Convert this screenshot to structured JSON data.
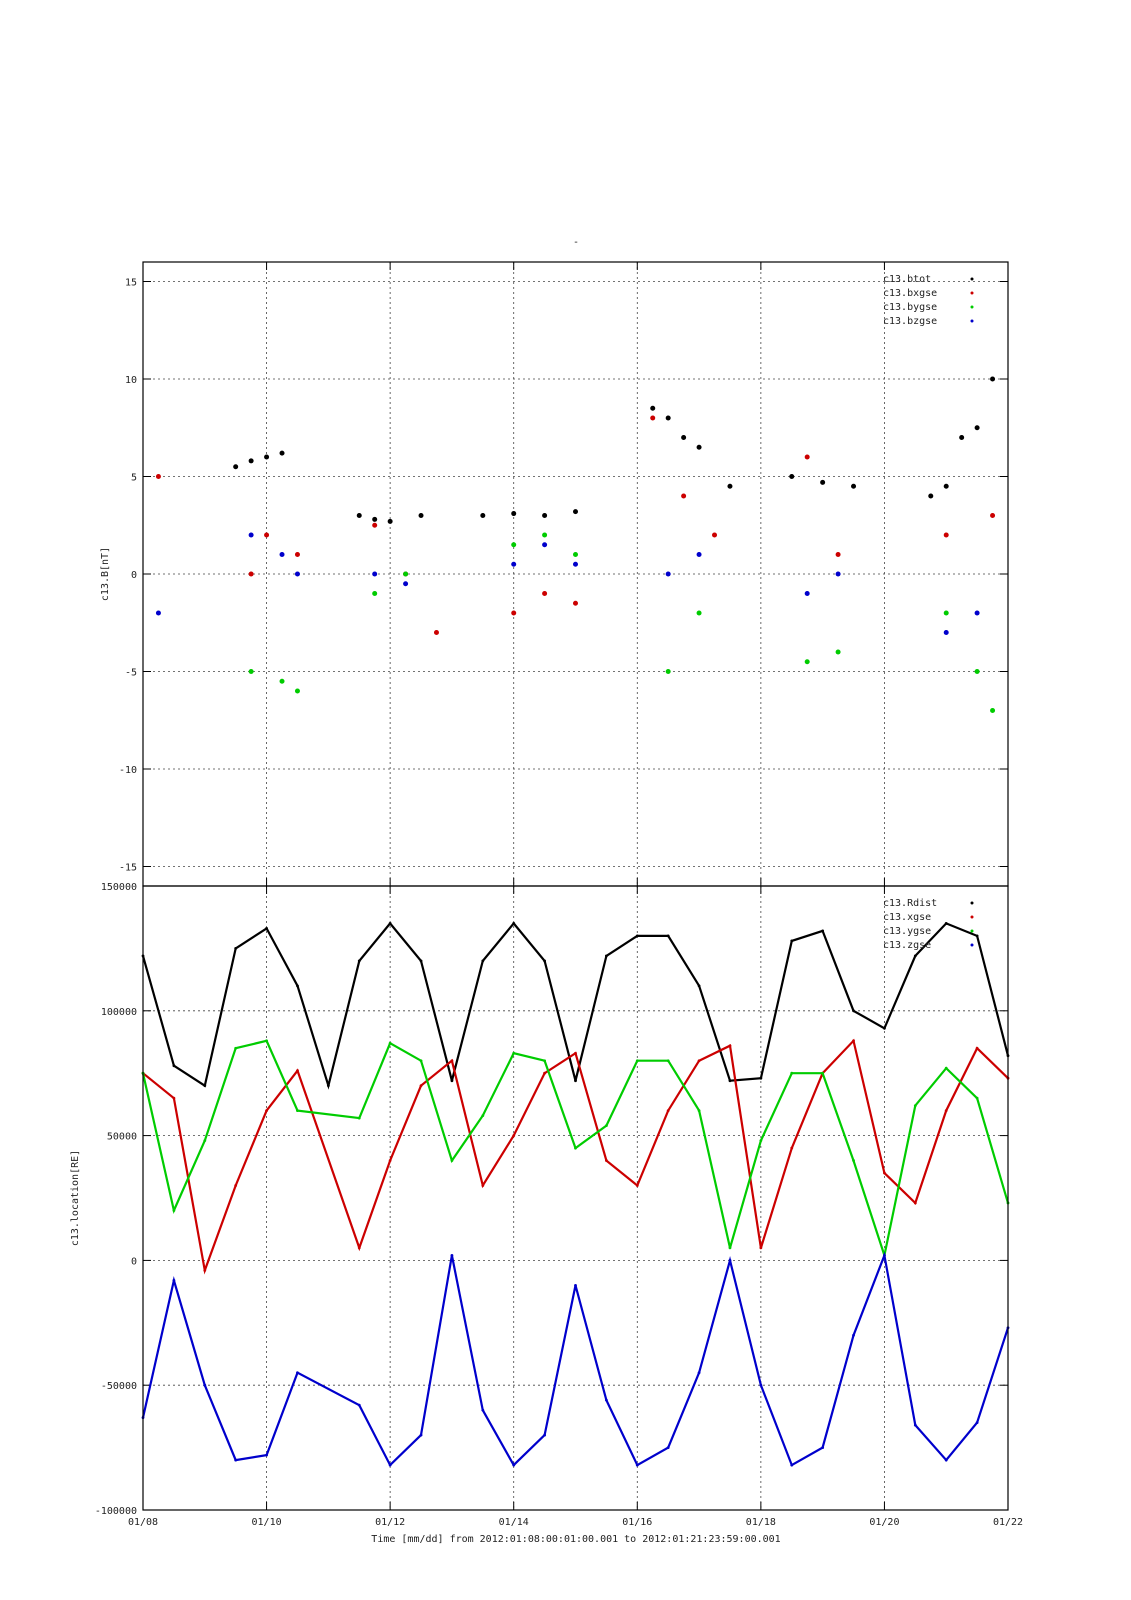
{
  "top_mark": "-",
  "x_axis": {
    "label": "Time [mm/dd]  from 2012:01:08:00:01:00.001  to  2012:01:21:23:59:00.001",
    "range": [
      "2012-01-08",
      "2012-01-22"
    ],
    "ticks": [
      "01/08",
      "01/10",
      "01/12",
      "01/14",
      "01/16",
      "01/18",
      "01/20",
      "01/22"
    ]
  },
  "colors": {
    "Rdist": "#000000",
    "xgse": "#cc0000",
    "ygse": "#00cc00",
    "zgse": "#0000cc"
  },
  "chart_data": [
    {
      "type": "scatter",
      "ylabel": "c13.B[nT]",
      "ylim": [
        -16,
        16
      ],
      "yticks": [
        "15",
        "10",
        "5",
        "0",
        "-5",
        "-10",
        "-15"
      ],
      "grid": true,
      "legend_position": "top-right",
      "series": [
        {
          "name": "c13.btot",
          "color": "#000000",
          "x": [
            "01/09 12:00",
            "01/09 18:00",
            "01/10 00:00",
            "01/10 06:00",
            "01/11 12:00",
            "01/11 18:00",
            "01/12 00:00",
            "01/12 12:00",
            "01/13 12:00",
            "01/14 00:00",
            "01/14 12:00",
            "01/15 00:00",
            "01/16 06:00",
            "01/16 12:00",
            "01/16 18:00",
            "01/17 00:00",
            "01/17 12:00",
            "01/18 12:00",
            "01/19 00:00",
            "01/19 12:00",
            "01/20 18:00",
            "01/21 00:00",
            "01/21 06:00",
            "01/21 12:00",
            "01/21 18:00"
          ],
          "values": [
            5.5,
            5.8,
            6.0,
            6.2,
            3.0,
            2.8,
            2.7,
            3.0,
            3.0,
            3.1,
            3.0,
            3.2,
            8.5,
            8.0,
            7.0,
            6.5,
            4.5,
            5.0,
            4.7,
            4.5,
            4.0,
            4.5,
            7.0,
            7.5,
            10.0
          ]
        },
        {
          "name": "c13.bxgse",
          "color": "#cc0000",
          "x": [
            "01/08 06:00",
            "01/09 18:00",
            "01/10 00:00",
            "01/10 12:00",
            "01/11 18:00",
            "01/12 06:00",
            "01/12 18:00",
            "01/14 00:00",
            "01/14 12:00",
            "01/15 00:00",
            "01/16 06:00",
            "01/16 18:00",
            "01/17 06:00",
            "01/18 18:00",
            "01/19 06:00",
            "01/21 00:00",
            "01/21 18:00"
          ],
          "values": [
            5.0,
            0.0,
            2.0,
            1.0,
            2.5,
            0.0,
            -3.0,
            -2.0,
            -1.0,
            -1.5,
            8.0,
            4.0,
            2.0,
            6.0,
            1.0,
            2.0,
            3.0
          ]
        },
        {
          "name": "c13.bygse",
          "color": "#00cc00",
          "x": [
            "01/09 18:00",
            "01/10 06:00",
            "01/10 12:00",
            "01/11 18:00",
            "01/12 06:00",
            "01/14 00:00",
            "01/14 12:00",
            "01/15 00:00",
            "01/16 12:00",
            "01/17 00:00",
            "01/18 18:00",
            "01/19 06:00",
            "01/21 00:00",
            "01/21 12:00",
            "01/21 18:00"
          ],
          "values": [
            -5.0,
            -5.5,
            -6.0,
            -1.0,
            0.0,
            1.5,
            2.0,
            1.0,
            -5.0,
            -2.0,
            -4.5,
            -4.0,
            -2.0,
            -5.0,
            -7.0
          ]
        },
        {
          "name": "c13.bzgse",
          "color": "#0000cc",
          "x": [
            "01/08 06:00",
            "01/09 18:00",
            "01/10 06:00",
            "01/10 12:00",
            "01/11 18:00",
            "01/12 06:00",
            "01/14 00:00",
            "01/14 12:00",
            "01/15 00:00",
            "01/16 12:00",
            "01/17 00:00",
            "01/18 18:00",
            "01/19 06:00",
            "01/21 00:00",
            "01/21 12:00"
          ],
          "values": [
            -2.0,
            2.0,
            1.0,
            0.0,
            0.0,
            -0.5,
            0.5,
            1.5,
            0.5,
            0.0,
            1.0,
            -1.0,
            0.0,
            -3.0,
            -2.0
          ]
        }
      ]
    },
    {
      "type": "line",
      "ylabel": "c13.location[RE]",
      "ylim": [
        -100000,
        150000
      ],
      "yticks": [
        "150000",
        "100000",
        "50000",
        "0",
        "-50000",
        "-100000"
      ],
      "grid": true,
      "legend_position": "top-right",
      "series": [
        {
          "name": "c13.Rdist",
          "color": "#000000",
          "x": [
            "01/08 00:00",
            "01/08 12:00",
            "01/09 00:00",
            "01/09 12:00",
            "01/10 00:00",
            "01/10 12:00",
            "01/11 00:00",
            "01/11 12:00",
            "01/12 00:00",
            "01/12 12:00",
            "01/13 00:00",
            "01/13 12:00",
            "01/14 00:00",
            "01/14 12:00",
            "01/15 00:00",
            "01/15 12:00",
            "01/16 00:00",
            "01/16 12:00",
            "01/17 00:00",
            "01/17 12:00",
            "01/18 00:00",
            "01/18 12:00",
            "01/19 00:00",
            "01/19 12:00",
            "01/20 00:00",
            "01/20 12:00",
            "01/21 00:00",
            "01/21 12:00",
            "01/22 00:00"
          ],
          "values": [
            122000,
            78000,
            70000,
            125000,
            133000,
            110000,
            70000,
            120000,
            135000,
            120000,
            72000,
            120000,
            135000,
            120000,
            72000,
            122000,
            130000,
            130000,
            110000,
            72000,
            73000,
            128000,
            132000,
            100000,
            93000,
            122000,
            135000,
            130000,
            82000
          ]
        },
        {
          "name": "c13.xgse",
          "color": "#cc0000",
          "x": [
            "01/08 00:00",
            "01/08 12:00",
            "01/09 00:00",
            "01/09 12:00",
            "01/10 00:00",
            "01/10 12:00",
            "01/11 12:00",
            "01/12 00:00",
            "01/12 12:00",
            "01/13 00:00",
            "01/13 12:00",
            "01/14 00:00",
            "01/14 12:00",
            "01/15 00:00",
            "01/15 12:00",
            "01/16 00:00",
            "01/16 12:00",
            "01/17 00:00",
            "01/17 12:00",
            "01/18 00:00",
            "01/18 12:00",
            "01/19 00:00",
            "01/19 12:00",
            "01/20 00:00",
            "01/20 12:00",
            "01/21 00:00",
            "01/21 12:00",
            "01/22 00:00"
          ],
          "values": [
            75000,
            65000,
            -4000,
            30000,
            60000,
            76000,
            5000,
            40000,
            70000,
            80000,
            30000,
            50000,
            75000,
            83000,
            40000,
            30000,
            60000,
            80000,
            86000,
            5000,
            45000,
            75000,
            88000,
            35000,
            23000,
            60000,
            85000,
            73000
          ]
        },
        {
          "name": "c13.ygse",
          "color": "#00cc00",
          "x": [
            "01/08 00:00",
            "01/08 12:00",
            "01/09 00:00",
            "01/09 12:00",
            "01/10 00:00",
            "01/10 12:00",
            "01/11 12:00",
            "01/12 00:00",
            "01/12 12:00",
            "01/13 00:00",
            "01/13 12:00",
            "01/14 00:00",
            "01/14 12:00",
            "01/15 00:00",
            "01/15 12:00",
            "01/16 00:00",
            "01/16 12:00",
            "01/17 00:00",
            "01/17 12:00",
            "01/18 00:00",
            "01/18 12:00",
            "01/19 00:00",
            "01/19 12:00",
            "01/20 00:00",
            "01/20 12:00",
            "01/21 00:00",
            "01/21 12:00",
            "01/22 00:00"
          ],
          "values": [
            75000,
            20000,
            48000,
            85000,
            88000,
            60000,
            57000,
            87000,
            80000,
            40000,
            58000,
            83000,
            80000,
            45000,
            54000,
            80000,
            80000,
            60000,
            5000,
            48000,
            75000,
            75000,
            40000,
            2000,
            62000,
            77000,
            65000,
            23000
          ]
        },
        {
          "name": "c13.zgse",
          "color": "#0000cc",
          "x": [
            "01/08 00:00",
            "01/08 12:00",
            "01/09 00:00",
            "01/09 12:00",
            "01/10 00:00",
            "01/10 12:00",
            "01/11 12:00",
            "01/12 00:00",
            "01/12 12:00",
            "01/13 00:00",
            "01/13 12:00",
            "01/14 00:00",
            "01/14 12:00",
            "01/15 00:00",
            "01/15 12:00",
            "01/16 00:00",
            "01/16 12:00",
            "01/17 00:00",
            "01/17 12:00",
            "01/18 00:00",
            "01/18 12:00",
            "01/19 00:00",
            "01/19 12:00",
            "01/20 00:00",
            "01/20 12:00",
            "01/21 00:00",
            "01/21 12:00",
            "01/22 00:00"
          ],
          "values": [
            -63000,
            -8000,
            -50000,
            -80000,
            -78000,
            -45000,
            -58000,
            -82000,
            -70000,
            2000,
            -60000,
            -82000,
            -70000,
            -10000,
            -56000,
            -82000,
            -75000,
            -45000,
            0,
            -50000,
            -82000,
            -75000,
            -30000,
            2000,
            -66000,
            -80000,
            -65000,
            -27000
          ]
        }
      ]
    }
  ]
}
